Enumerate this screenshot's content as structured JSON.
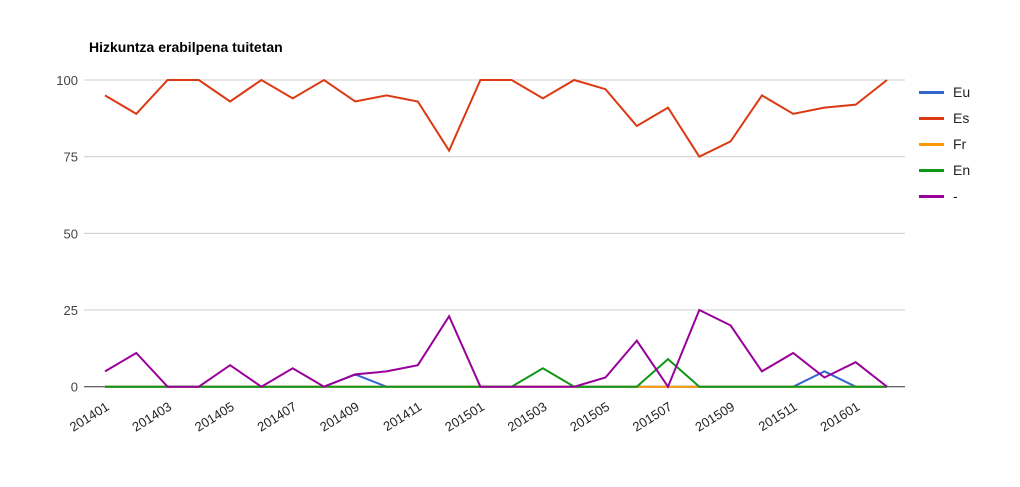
{
  "chart_data": {
    "type": "line",
    "title": "Hizkuntza erabilpena tuitetan",
    "xlabel": "",
    "ylabel": "",
    "ylim": [
      0,
      100
    ],
    "y_ticks": [
      0,
      25,
      50,
      75,
      100
    ],
    "grid": "horizontal",
    "legend_position": "right",
    "x_categories": [
      "201401",
      "201402",
      "201403",
      "201404",
      "201405",
      "201406",
      "201407",
      "201408",
      "201409",
      "201410",
      "201411",
      "201412",
      "201501",
      "201502",
      "201503",
      "201504",
      "201505",
      "201506",
      "201507",
      "201508",
      "201509",
      "201510",
      "201511",
      "201512",
      "201601",
      "201602"
    ],
    "x_tick_labels": [
      "201401",
      "201403",
      "201405",
      "201407",
      "201409",
      "201411",
      "201501",
      "201503",
      "201505",
      "201507",
      "201509",
      "201511",
      "201601"
    ],
    "series": [
      {
        "name": "Eu",
        "color": "#3366cc",
        "values": [
          0,
          0,
          0,
          0,
          0,
          0,
          0,
          0,
          4,
          0,
          0,
          0,
          0,
          0,
          0,
          0,
          0,
          0,
          0,
          0,
          0,
          0,
          0,
          5,
          0,
          0
        ]
      },
      {
        "name": "Es",
        "color": "#dc3912",
        "values": [
          95,
          89,
          100,
          100,
          93,
          100,
          94,
          100,
          93,
          95,
          93,
          77,
          100,
          100,
          94,
          100,
          97,
          85,
          91,
          75,
          80,
          95,
          89,
          91,
          92,
          100
        ]
      },
      {
        "name": "Fr",
        "color": "#ff9900",
        "values": [
          0,
          0,
          0,
          0,
          0,
          0,
          0,
          0,
          0,
          0,
          0,
          0,
          0,
          0,
          0,
          0,
          0,
          0,
          0,
          0,
          0,
          0,
          0,
          0,
          0,
          0
        ]
      },
      {
        "name": "En",
        "color": "#109618",
        "values": [
          0,
          0,
          0,
          0,
          0,
          0,
          0,
          0,
          0,
          0,
          0,
          0,
          0,
          0,
          6,
          0,
          0,
          0,
          9,
          0,
          0,
          0,
          0,
          0,
          0,
          0
        ]
      },
      {
        "name": "-",
        "color": "#990099",
        "values": [
          5,
          11,
          0,
          0,
          7,
          0,
          6,
          0,
          4,
          5,
          7,
          23,
          0,
          0,
          0,
          0,
          3,
          15,
          0,
          25,
          20,
          5,
          11,
          3,
          8,
          0
        ]
      }
    ],
    "axis_text_color": "#444444",
    "x_label_color": "#222222",
    "gridline_color": "#cccccc",
    "baseline_color": "#333333"
  }
}
